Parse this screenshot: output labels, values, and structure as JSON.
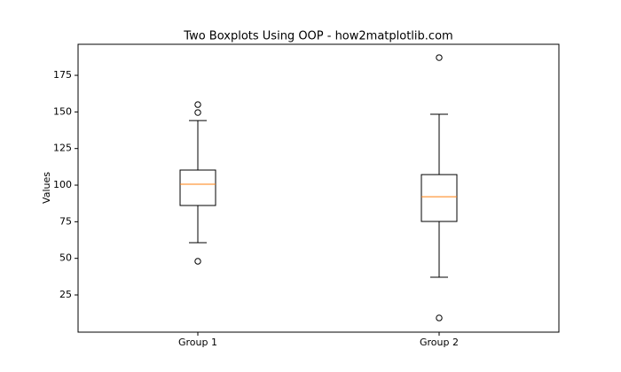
{
  "chart_data": {
    "type": "box",
    "title": "Two Boxplots Using OOP - how2matplotlib.com",
    "ylabel": "Values",
    "categories": [
      "Group 1",
      "Group 2"
    ],
    "boxes": [
      {
        "whisker_low": 60.7,
        "q1": 86.1,
        "median": 100.6,
        "q3": 110.3,
        "whisker_high": 144.1,
        "outliers": [
          155,
          149.6,
          48
        ]
      },
      {
        "whisker_low": 37.1,
        "q1": 75.2,
        "median": 92.1,
        "q3": 107.2,
        "whisker_high": 148.4,
        "outliers": [
          187.1,
          9.3
        ]
      }
    ],
    "box_color": "#000000",
    "median_color": "#ff7f0e",
    "ylim": [
      -0.4,
      196.2
    ],
    "yticks": [
      25,
      50,
      75,
      100,
      125,
      150,
      175
    ],
    "grid": false
  }
}
